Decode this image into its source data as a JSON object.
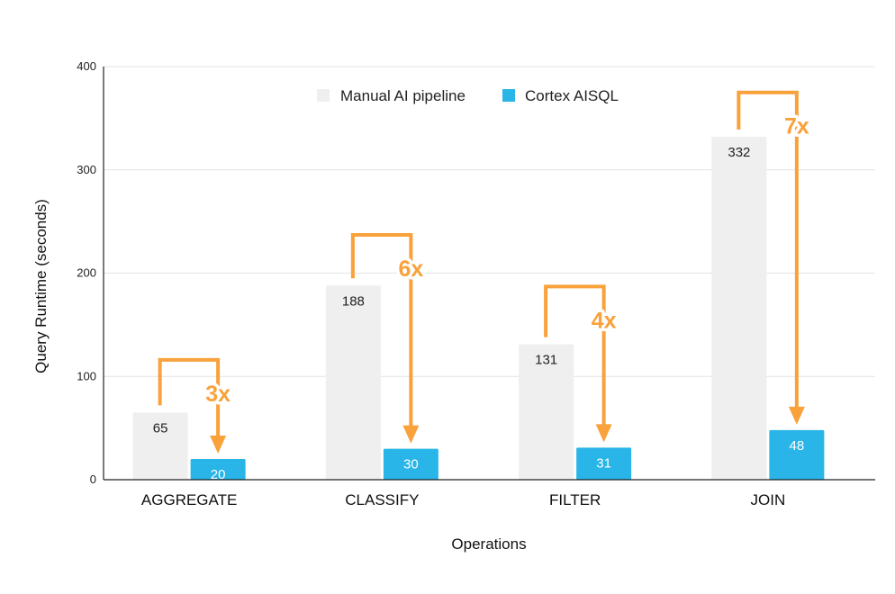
{
  "chart_data": {
    "type": "bar",
    "title": "",
    "xlabel": "Operations",
    "ylabel": "Query Runtime (seconds)",
    "ylim": [
      0,
      400
    ],
    "yticks": [
      0,
      100,
      200,
      300,
      400
    ],
    "grid": true,
    "legend_position": "top-center",
    "categories": [
      "AGGREGATE",
      "CLASSIFY",
      "FILTER",
      "JOIN"
    ],
    "series": [
      {
        "name": "Manual AI pipeline",
        "color": "#efefef",
        "label_color": "#222222",
        "values": [
          65,
          188,
          131,
          332
        ]
      },
      {
        "name": "Cortex AISQL",
        "color": "#29b5e8",
        "label_color": "#ffffff",
        "values": [
          20,
          30,
          31,
          48
        ]
      }
    ],
    "annotations": [
      {
        "category": "AGGREGATE",
        "text": "3x",
        "bracket_top": 116
      },
      {
        "category": "CLASSIFY",
        "text": "6x",
        "bracket_top": 237
      },
      {
        "category": "FILTER",
        "text": "4x",
        "bracket_top": 187
      },
      {
        "category": "JOIN",
        "text": "7x",
        "bracket_top": 375
      }
    ],
    "annotation_color": "#f9a13a"
  }
}
